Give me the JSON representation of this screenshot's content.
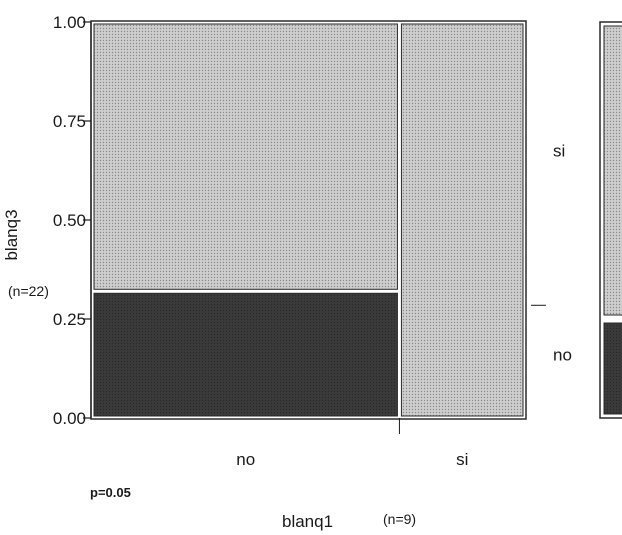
{
  "chart_data": {
    "type": "mosaic",
    "x_variable": "blanq1",
    "y_variable": "blanq3",
    "x_categories": [
      "no",
      "si"
    ],
    "y_categories": [
      "no",
      "si"
    ],
    "x_widths": [
      0.71,
      0.29
    ],
    "proportions": {
      "no": {
        "no": 0.32,
        "si": 0.68
      },
      "si": {
        "no": 0.0,
        "si": 1.0
      }
    },
    "y_ticks": [
      "0.00",
      "0.25",
      "0.50",
      "0.75",
      "1.00"
    ],
    "ylim": [
      0,
      1
    ],
    "ylabel": "blanq3",
    "xlabel": "blanq1",
    "y_count_label": "(n=22)",
    "x_count_label": "(n=9)",
    "p_value_label": "p=0.05",
    "legend": [
      "si",
      "no"
    ],
    "colors": {
      "si": "#c2c2c2",
      "no": "#3a3a3a",
      "border": "#2a2a2a"
    }
  }
}
